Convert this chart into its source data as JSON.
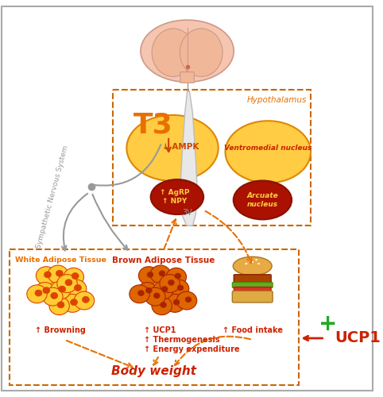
{
  "bg_color": "#ffffff",
  "border_color": "#cccccc",
  "orange_dark": "#cc4400",
  "orange_med": "#e87000",
  "orange_light": "#ffcc00",
  "orange_fill": "#ffdd88",
  "yellow_fill": "#ffe066",
  "red_dark": "#cc1100",
  "green_cross": "#22aa22",
  "dashed_box_color": "#cc6600",
  "gray_arrow": "#888888",
  "hypothalamus_label": "Hypothalamus",
  "t3_label": "T3",
  "ampk_label": "↓ AMPK",
  "agrp_label": "↑ AgRP\n↑ NPY",
  "ventro_label": "Ventromedial nucleus",
  "arcuate_label": "Arcuate\nnucleus",
  "three_v_label": "3V",
  "sns_label": "Sympathetic Nervous System",
  "white_adipose_label": "White Adipose Tissue",
  "brown_adipose_label": "Brown Adipose Tissue",
  "browning_label": "↑ Browning",
  "ucp1_label": "↑ UCP1",
  "thermo_label": "↑ Thermogenesis",
  "energy_label": "↑ Energy expenditure",
  "food_intake_label": "↑ Food intake",
  "body_weight_label": "Body weight",
  "ucp1_right_label": "UCP1",
  "plus_sign": "+"
}
